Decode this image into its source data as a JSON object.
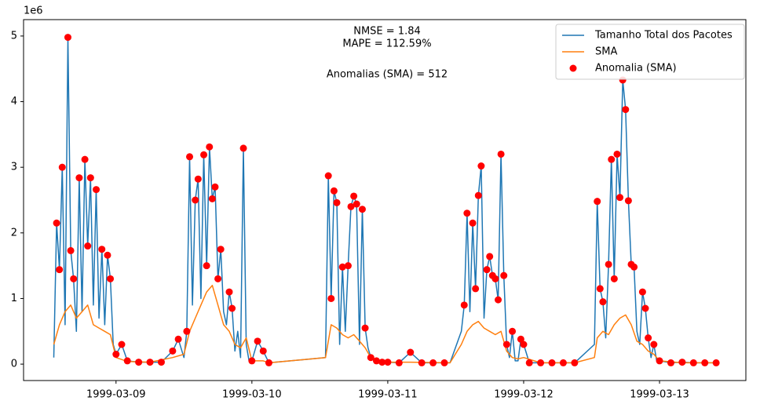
{
  "chart_data": {
    "type": "line",
    "offset_text": "1e6",
    "annotations": [
      "NMSE = 1.84",
      "MAPE = 112.59%",
      "Anomalias (SMA) = 512"
    ],
    "xlim": [
      "1999-03-08T07:40",
      "1999-03-13T15:15"
    ],
    "xticks": [
      "1999-03-09",
      "1999-03-10",
      "1999-03-11",
      "1999-03-12",
      "1999-03-13"
    ],
    "ylim": [
      -0.25,
      5.25
    ],
    "yticks": [
      0,
      1,
      2,
      3,
      4,
      5
    ],
    "legend": "upper right",
    "series": [
      {
        "name": "Tamanho Total dos Pacotes",
        "color": "#1f77b4",
        "kind": "line",
        "x": [
          "1999-03-08T13:00",
          "1999-03-08T13:30",
          "1999-03-08T14:00",
          "1999-03-08T14:30",
          "1999-03-08T15:00",
          "1999-03-08T15:30",
          "1999-03-08T16:00",
          "1999-03-08T16:30",
          "1999-03-08T17:00",
          "1999-03-08T17:30",
          "1999-03-08T18:00",
          "1999-03-08T18:30",
          "1999-03-08T19:00",
          "1999-03-08T19:30",
          "1999-03-08T20:00",
          "1999-03-08T20:30",
          "1999-03-08T21:00",
          "1999-03-08T21:30",
          "1999-03-08T22:00",
          "1999-03-08T22:30",
          "1999-03-08T23:00",
          "1999-03-08T23:30",
          "1999-03-09T00:00",
          "1999-03-09T01:00",
          "1999-03-09T02:00",
          "1999-03-09T04:00",
          "1999-03-09T06:00",
          "1999-03-09T08:00",
          "1999-03-09T10:00",
          "1999-03-09T11:00",
          "1999-03-09T12:00",
          "1999-03-09T12:30",
          "1999-03-09T13:00",
          "1999-03-09T13:30",
          "1999-03-09T14:00",
          "1999-03-09T14:30",
          "1999-03-09T15:00",
          "1999-03-09T15:30",
          "1999-03-09T16:00",
          "1999-03-09T16:30",
          "1999-03-09T17:00",
          "1999-03-09T17:30",
          "1999-03-09T18:00",
          "1999-03-09T18:30",
          "1999-03-09T19:00",
          "1999-03-09T19:30",
          "1999-03-09T20:00",
          "1999-03-09T20:30",
          "1999-03-09T21:00",
          "1999-03-09T21:30",
          "1999-03-09T22:00",
          "1999-03-09T22:30",
          "1999-03-09T23:00",
          "1999-03-09T23:30",
          "1999-03-10T00:00",
          "1999-03-10T01:00",
          "1999-03-10T02:00",
          "1999-03-10T03:00",
          "1999-03-10T13:00",
          "1999-03-10T13:30",
          "1999-03-10T14:00",
          "1999-03-10T14:30",
          "1999-03-10T15:00",
          "1999-03-10T15:30",
          "1999-03-10T16:00",
          "1999-03-10T16:30",
          "1999-03-10T17:00",
          "1999-03-10T17:30",
          "1999-03-10T18:00",
          "1999-03-10T18:30",
          "1999-03-10T19:00",
          "1999-03-10T19:30",
          "1999-03-10T20:00",
          "1999-03-10T20:30",
          "1999-03-10T21:00",
          "1999-03-10T22:00",
          "1999-03-10T23:00",
          "1999-03-11T00:00",
          "1999-03-11T02:00",
          "1999-03-11T04:00",
          "1999-03-11T06:00",
          "1999-03-11T08:00",
          "1999-03-11T10:00",
          "1999-03-11T11:00",
          "1999-03-11T13:00",
          "1999-03-11T13:30",
          "1999-03-11T14:00",
          "1999-03-11T14:30",
          "1999-03-11T15:00",
          "1999-03-11T15:30",
          "1999-03-11T16:00",
          "1999-03-11T16:30",
          "1999-03-11T17:00",
          "1999-03-11T17:30",
          "1999-03-11T18:00",
          "1999-03-11T18:30",
          "1999-03-11T19:00",
          "1999-03-11T19:30",
          "1999-03-11T20:00",
          "1999-03-11T20:30",
          "1999-03-11T21:00",
          "1999-03-11T21:30",
          "1999-03-11T22:00",
          "1999-03-11T22:30",
          "1999-03-11T23:00",
          "1999-03-11T23:30",
          "1999-03-12T00:00",
          "1999-03-12T01:00",
          "1999-03-12T03:00",
          "1999-03-12T05:00",
          "1999-03-12T07:00",
          "1999-03-12T09:00",
          "1999-03-12T12:30",
          "1999-03-12T13:00",
          "1999-03-12T13:30",
          "1999-03-12T14:00",
          "1999-03-12T14:30",
          "1999-03-12T15:00",
          "1999-03-12T15:30",
          "1999-03-12T16:00",
          "1999-03-12T16:30",
          "1999-03-12T17:00",
          "1999-03-12T17:30",
          "1999-03-12T18:00",
          "1999-03-12T18:30",
          "1999-03-12T19:00",
          "1999-03-12T19:30",
          "1999-03-12T20:00",
          "1999-03-12T20:30",
          "1999-03-12T21:00",
          "1999-03-12T21:30",
          "1999-03-12T22:00",
          "1999-03-12T22:30",
          "1999-03-12T23:00",
          "1999-03-12T23:30",
          "1999-03-13T00:00",
          "1999-03-13T02:00",
          "1999-03-13T04:00",
          "1999-03-13T06:00",
          "1999-03-13T08:00",
          "1999-03-13T10:00"
        ],
        "values": [
          0.1,
          2.15,
          1.44,
          3.0,
          0.6,
          4.98,
          1.73,
          1.3,
          0.5,
          2.84,
          0.8,
          3.12,
          1.8,
          2.84,
          0.9,
          2.66,
          0.7,
          1.75,
          0.6,
          1.66,
          1.3,
          0.3,
          0.15,
          0.3,
          0.05,
          0.03,
          0.03,
          0.03,
          0.2,
          0.38,
          0.1,
          0.5,
          3.16,
          0.9,
          2.5,
          2.82,
          1.0,
          3.19,
          1.5,
          3.31,
          2.52,
          2.7,
          1.3,
          1.75,
          0.8,
          0.6,
          1.1,
          0.85,
          0.2,
          0.5,
          0.1,
          3.29,
          0.3,
          0.05,
          0.05,
          0.35,
          0.2,
          0.02,
          0.1,
          2.87,
          1.0,
          2.64,
          2.46,
          0.3,
          1.48,
          0.5,
          1.5,
          2.4,
          2.56,
          2.44,
          0.3,
          2.36,
          0.55,
          0.25,
          0.1,
          0.05,
          0.03,
          0.03,
          0.02,
          0.18,
          0.02,
          0.02,
          0.02,
          0.02,
          0.5,
          0.9,
          2.3,
          0.8,
          2.15,
          1.15,
          2.57,
          3.02,
          0.7,
          1.44,
          1.64,
          1.35,
          1.3,
          0.98,
          3.2,
          1.35,
          0.3,
          0.1,
          0.5,
          0.05,
          0.05,
          0.38,
          0.3,
          0.02,
          0.02,
          0.02,
          0.02,
          0.02,
          0.3,
          2.48,
          1.15,
          0.95,
          0.4,
          1.52,
          3.12,
          1.3,
          3.2,
          2.54,
          4.33,
          3.88,
          2.49,
          1.52,
          1.48,
          0.5,
          0.3,
          1.1,
          0.85,
          0.4,
          0.1,
          0.3,
          0.05,
          0.05,
          0.02,
          0.03,
          0.02,
          0.02,
          0.02
        ]
      },
      {
        "name": "SMA",
        "color": "#ff7f0e",
        "kind": "line",
        "x": [
          "1999-03-08T13:00",
          "1999-03-08T14:00",
          "1999-03-08T15:00",
          "1999-03-08T16:00",
          "1999-03-08T17:00",
          "1999-03-08T18:00",
          "1999-03-08T19:00",
          "1999-03-08T20:00",
          "1999-03-08T21:00",
          "1999-03-08T22:00",
          "1999-03-08T23:00",
          "1999-03-09T00:00",
          "1999-03-09T02:00",
          "1999-03-09T06:00",
          "1999-03-09T10:00",
          "1999-03-09T12:00",
          "1999-03-09T13:00",
          "1999-03-09T14:00",
          "1999-03-09T15:00",
          "1999-03-09T16:00",
          "1999-03-09T17:00",
          "1999-03-09T18:00",
          "1999-03-09T19:00",
          "1999-03-09T20:00",
          "1999-03-09T21:00",
          "1999-03-09T22:00",
          "1999-03-09T23:00",
          "1999-03-10T00:00",
          "1999-03-10T02:00",
          "1999-03-10T03:00",
          "1999-03-10T13:00",
          "1999-03-10T14:00",
          "1999-03-10T15:00",
          "1999-03-10T16:00",
          "1999-03-10T17:00",
          "1999-03-10T18:00",
          "1999-03-10T19:00",
          "1999-03-10T20:00",
          "1999-03-10T21:00",
          "1999-03-10T23:00",
          "1999-03-11T04:00",
          "1999-03-11T11:00",
          "1999-03-11T13:00",
          "1999-03-11T14:00",
          "1999-03-11T15:00",
          "1999-03-11T16:00",
          "1999-03-11T17:00",
          "1999-03-11T18:00",
          "1999-03-11T19:00",
          "1999-03-11T20:00",
          "1999-03-11T21:00",
          "1999-03-11T22:00",
          "1999-03-11T23:00",
          "1999-03-12T00:00",
          "1999-03-12T03:00",
          "1999-03-12T09:00",
          "1999-03-12T12:30",
          "1999-03-12T13:00",
          "1999-03-12T14:00",
          "1999-03-12T15:00",
          "1999-03-12T16:00",
          "1999-03-12T17:00",
          "1999-03-12T18:00",
          "1999-03-12T19:00",
          "1999-03-12T20:00",
          "1999-03-12T21:00",
          "1999-03-12T22:00",
          "1999-03-12T23:00",
          "1999-03-13T00:00",
          "1999-03-13T04:00",
          "1999-03-13T10:00"
        ],
        "values": [
          0.3,
          0.6,
          0.8,
          0.9,
          0.7,
          0.8,
          0.9,
          0.6,
          0.55,
          0.5,
          0.45,
          0.1,
          0.04,
          0.03,
          0.1,
          0.15,
          0.5,
          0.7,
          0.9,
          1.1,
          1.2,
          0.9,
          0.6,
          0.5,
          0.3,
          0.25,
          0.4,
          0.05,
          0.05,
          0.02,
          0.1,
          0.6,
          0.55,
          0.45,
          0.4,
          0.45,
          0.35,
          0.25,
          0.1,
          0.03,
          0.03,
          0.02,
          0.3,
          0.5,
          0.6,
          0.65,
          0.55,
          0.5,
          0.45,
          0.5,
          0.2,
          0.1,
          0.08,
          0.1,
          0.02,
          0.02,
          0.1,
          0.4,
          0.5,
          0.45,
          0.6,
          0.7,
          0.75,
          0.6,
          0.35,
          0.3,
          0.2,
          0.15,
          0.05,
          0.02,
          0.02
        ]
      },
      {
        "name": "Anomalia (SMA)",
        "color": "red",
        "kind": "scatter",
        "x": [
          "1999-03-08T13:30",
          "1999-03-08T14:00",
          "1999-03-08T14:30",
          "1999-03-08T15:30",
          "1999-03-08T16:00",
          "1999-03-08T16:30",
          "1999-03-08T17:30",
          "1999-03-08T18:30",
          "1999-03-08T19:00",
          "1999-03-08T19:30",
          "1999-03-08T20:30",
          "1999-03-08T21:30",
          "1999-03-08T22:30",
          "1999-03-08T23:00",
          "1999-03-09T00:00",
          "1999-03-09T01:00",
          "1999-03-09T02:00",
          "1999-03-09T04:00",
          "1999-03-09T06:00",
          "1999-03-09T08:00",
          "1999-03-09T10:00",
          "1999-03-09T11:00",
          "1999-03-09T12:30",
          "1999-03-09T13:00",
          "1999-03-09T14:00",
          "1999-03-09T14:30",
          "1999-03-09T15:30",
          "1999-03-09T16:00",
          "1999-03-09T16:30",
          "1999-03-09T17:00",
          "1999-03-09T17:30",
          "1999-03-09T18:00",
          "1999-03-09T18:30",
          "1999-03-09T20:00",
          "1999-03-09T20:30",
          "1999-03-09T22:30",
          "1999-03-10T00:00",
          "1999-03-10T01:00",
          "1999-03-10T02:00",
          "1999-03-10T03:00",
          "1999-03-10T13:30",
          "1999-03-10T14:00",
          "1999-03-10T14:30",
          "1999-03-10T15:00",
          "1999-03-10T16:00",
          "1999-03-10T17:00",
          "1999-03-10T17:30",
          "1999-03-10T18:00",
          "1999-03-10T18:30",
          "1999-03-10T19:30",
          "1999-03-10T20:00",
          "1999-03-10T21:00",
          "1999-03-10T22:00",
          "1999-03-10T23:00",
          "1999-03-11T00:00",
          "1999-03-11T02:00",
          "1999-03-11T04:00",
          "1999-03-11T06:00",
          "1999-03-11T08:00",
          "1999-03-11T10:00",
          "1999-03-11T13:30",
          "1999-03-11T14:00",
          "1999-03-11T15:00",
          "1999-03-11T15:30",
          "1999-03-11T16:00",
          "1999-03-11T16:30",
          "1999-03-11T17:30",
          "1999-03-11T18:00",
          "1999-03-11T18:30",
          "1999-03-11T19:00",
          "1999-03-11T19:30",
          "1999-03-11T20:00",
          "1999-03-11T20:30",
          "1999-03-11T21:00",
          "1999-03-11T22:00",
          "1999-03-11T23:30",
          "1999-03-12T00:00",
          "1999-03-12T01:00",
          "1999-03-12T03:00",
          "1999-03-12T05:00",
          "1999-03-12T07:00",
          "1999-03-12T09:00",
          "1999-03-12T13:00",
          "1999-03-12T13:30",
          "1999-03-12T14:00",
          "1999-03-12T15:00",
          "1999-03-12T15:30",
          "1999-03-12T16:00",
          "1999-03-12T16:30",
          "1999-03-12T17:00",
          "1999-03-12T17:30",
          "1999-03-12T18:00",
          "1999-03-12T18:30",
          "1999-03-12T19:00",
          "1999-03-12T19:30",
          "1999-03-12T21:00",
          "1999-03-12T21:30",
          "1999-03-12T22:00",
          "1999-03-12T23:00",
          "1999-03-13T00:00",
          "1999-03-13T02:00",
          "1999-03-13T04:00",
          "1999-03-13T06:00",
          "1999-03-13T08:00",
          "1999-03-13T10:00"
        ],
        "values": [
          2.15,
          1.44,
          3.0,
          4.98,
          1.73,
          1.3,
          2.84,
          3.12,
          1.8,
          2.84,
          2.66,
          1.75,
          1.66,
          1.3,
          0.15,
          0.3,
          0.05,
          0.03,
          0.03,
          0.03,
          0.2,
          0.38,
          0.5,
          3.16,
          2.5,
          2.82,
          3.19,
          1.5,
          3.31,
          2.52,
          2.7,
          1.3,
          1.75,
          1.1,
          0.85,
          3.29,
          0.05,
          0.35,
          0.2,
          0.02,
          2.87,
          1.0,
          2.64,
          2.46,
          1.48,
          1.5,
          2.4,
          2.56,
          2.44,
          2.36,
          0.55,
          0.1,
          0.05,
          0.03,
          0.03,
          0.02,
          0.18,
          0.02,
          0.02,
          0.02,
          0.9,
          2.3,
          2.15,
          1.15,
          2.57,
          3.02,
          1.44,
          1.64,
          1.35,
          1.3,
          0.98,
          3.2,
          1.35,
          0.3,
          0.5,
          0.38,
          0.3,
          0.02,
          0.02,
          0.02,
          0.02,
          0.02,
          2.48,
          1.15,
          0.95,
          1.52,
          3.12,
          1.3,
          3.2,
          2.54,
          4.33,
          3.88,
          2.49,
          1.52,
          1.48,
          1.1,
          0.85,
          0.4,
          0.3,
          0.05,
          0.02,
          0.03,
          0.02,
          0.02,
          0.02
        ]
      }
    ]
  }
}
